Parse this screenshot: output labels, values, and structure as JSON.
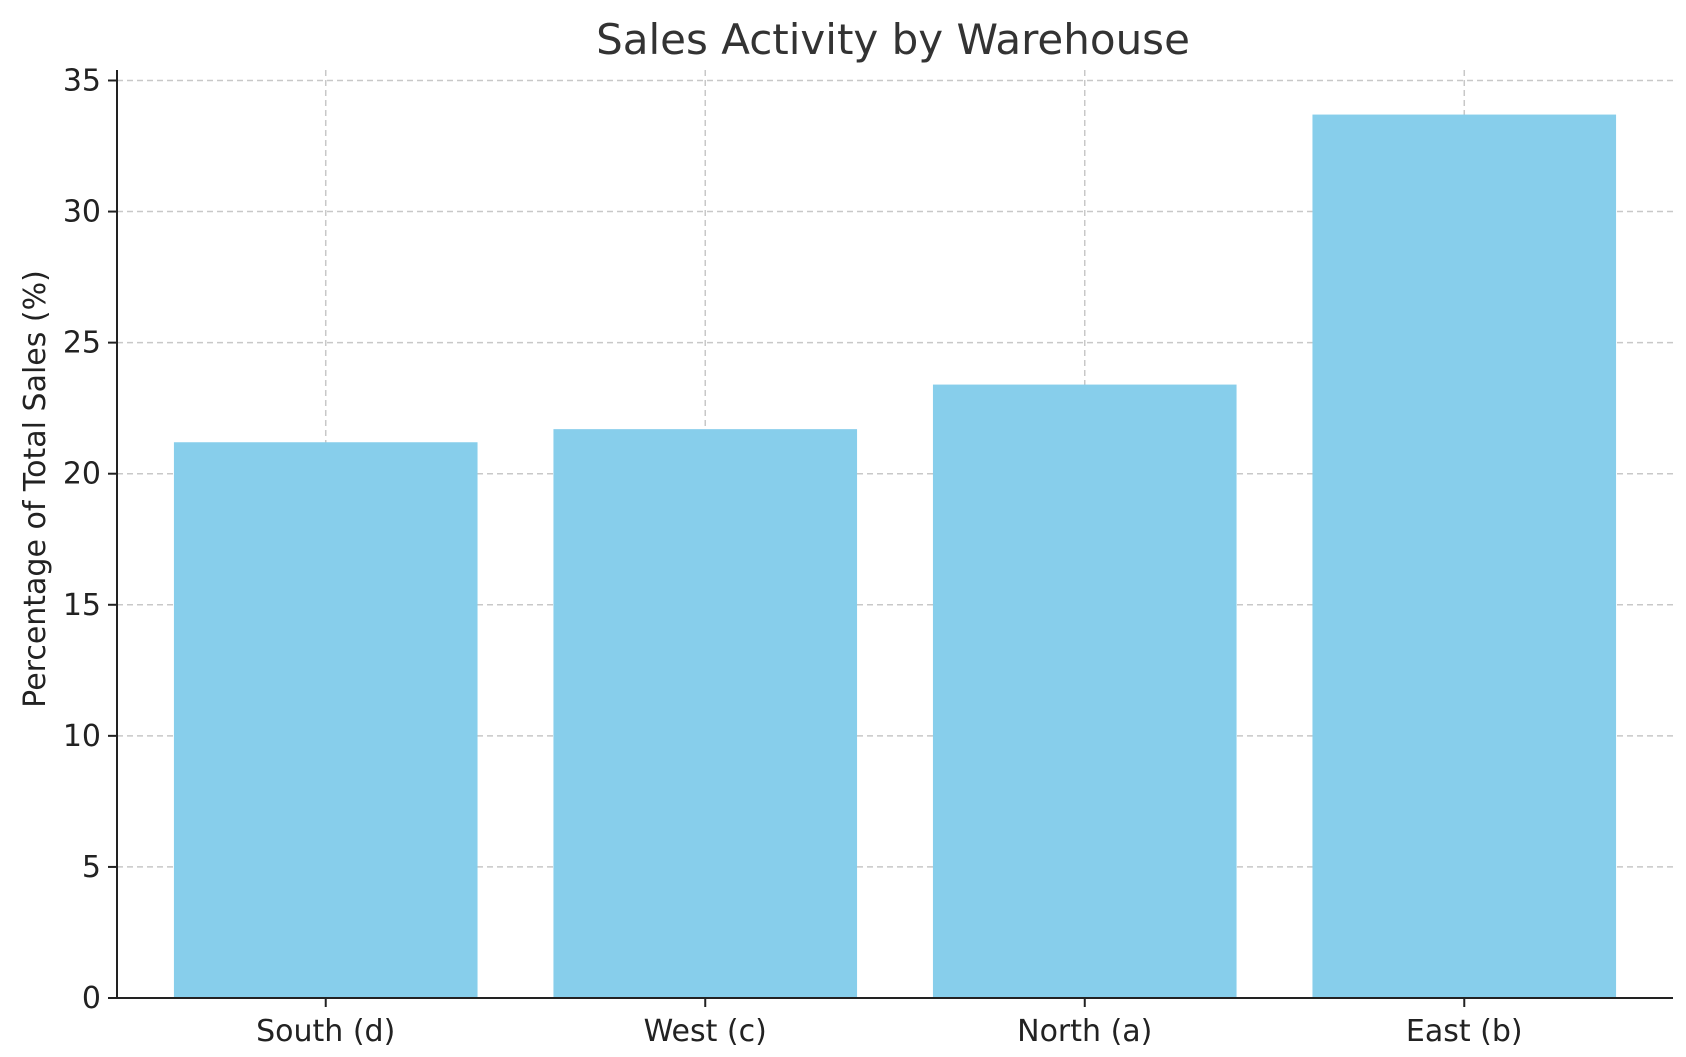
{
  "chart_data": {
    "type": "bar",
    "title": "Sales Activity by Warehouse",
    "xlabel": "",
    "ylabel": "Percentage of Total Sales (%)",
    "categories": [
      "South (d)",
      "West (c)",
      "North (a)",
      "East (b)"
    ],
    "values": [
      21.2,
      21.7,
      23.4,
      33.7
    ],
    "ylim": [
      0,
      35.4
    ],
    "yticks": [
      0,
      5,
      10,
      15,
      20,
      25,
      30,
      35
    ],
    "grid": true,
    "bar_color": "#87CEEB"
  }
}
